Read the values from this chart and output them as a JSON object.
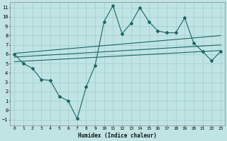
{
  "title": "",
  "xlabel": "Humidex (Indice chaleur)",
  "background_color": "#c0e4e4",
  "grid_color": "#a0cccc",
  "line_color": "#1a6666",
  "xlim": [
    -0.5,
    23.5
  ],
  "ylim": [
    -1.6,
    11.6
  ],
  "xticks": [
    0,
    1,
    2,
    3,
    4,
    5,
    6,
    7,
    8,
    9,
    10,
    11,
    12,
    13,
    14,
    15,
    16,
    17,
    18,
    19,
    20,
    21,
    22,
    23
  ],
  "yticks": [
    -1,
    0,
    1,
    2,
    3,
    4,
    5,
    6,
    7,
    8,
    9,
    10,
    11
  ],
  "line1_x": [
    0,
    1,
    2,
    3,
    4,
    5,
    6,
    7,
    8,
    9,
    10,
    11,
    12,
    13,
    14,
    15,
    16,
    17,
    18,
    19,
    20,
    21,
    22,
    23
  ],
  "line1_y": [
    6.0,
    5.0,
    4.5,
    3.3,
    3.2,
    1.5,
    1.0,
    -0.9,
    2.5,
    4.8,
    9.5,
    11.2,
    8.2,
    9.3,
    11.0,
    9.5,
    8.5,
    8.3,
    8.3,
    9.9,
    7.2,
    6.3,
    5.3,
    6.3
  ],
  "line2_x": [
    0,
    23
  ],
  "line2_y": [
    6.1,
    8.0
  ],
  "line3_x": [
    0,
    23
  ],
  "line3_y": [
    5.7,
    7.0
  ],
  "line4_x": [
    0,
    23
  ],
  "line4_y": [
    5.2,
    6.4
  ]
}
